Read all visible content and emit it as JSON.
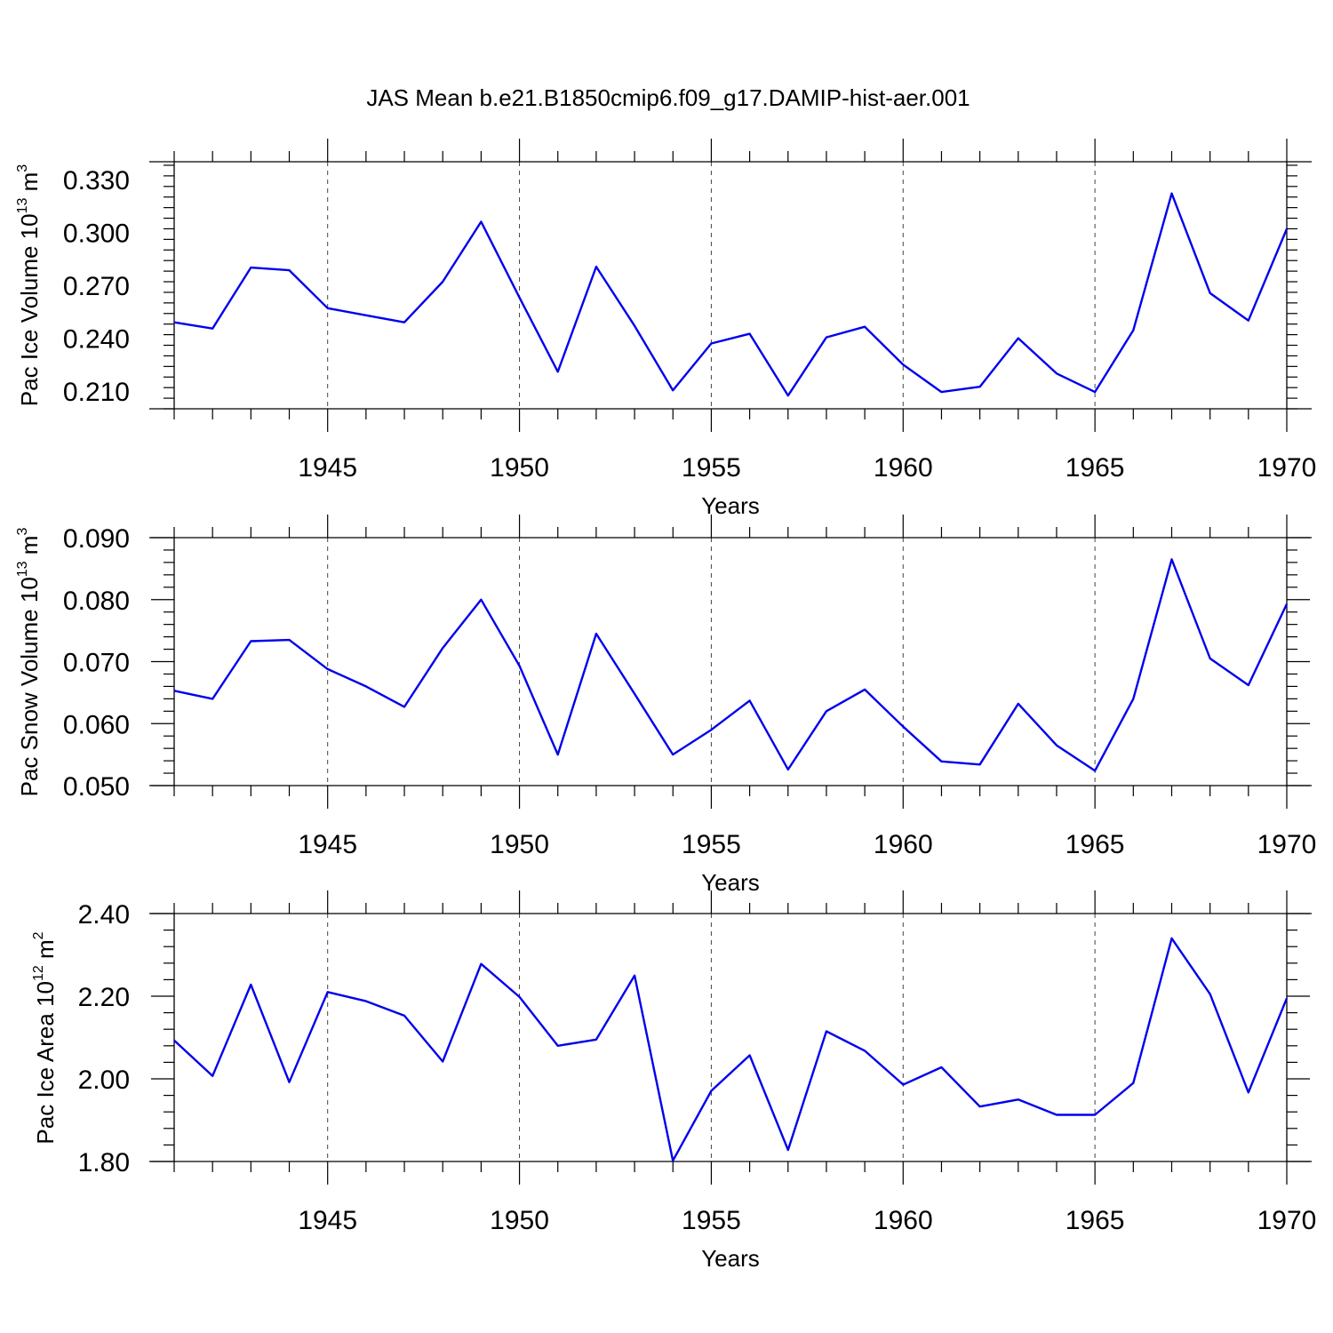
{
  "figure": {
    "title": "JAS Mean b.e21.B1850cmip6.f09_g17.DAMIP-hist-aer.001"
  },
  "colors": {
    "line": "#0000ee",
    "axis": "#000000",
    "grid": "#444444"
  },
  "chart_data": [
    {
      "type": "line",
      "ylabel": "Pac Ice Volume 10",
      "ylabel_sup": "13",
      "ylabel_unit": " m",
      "ylabel_unit_sup": "3",
      "xlabel": "Years",
      "xlim": [
        1941,
        1970
      ],
      "ylim": [
        0.2,
        0.34
      ],
      "yticks": [
        0.21,
        0.24,
        0.27,
        0.3,
        0.33
      ],
      "ytick_labels": [
        "0.210",
        "0.240",
        "0.270",
        "0.300",
        "0.330"
      ],
      "xticks": [
        1945,
        1950,
        1955,
        1960,
        1965,
        1970
      ],
      "xtick_labels": [
        "1945",
        "1950",
        "1955",
        "1960",
        "1965",
        "1970"
      ],
      "grid_x": [
        1945,
        1950,
        1955,
        1960,
        1965
      ],
      "series": [
        {
          "x": [
            1941,
            1942,
            1943,
            1944,
            1945,
            1946,
            1947,
            1948,
            1949,
            1950,
            1951,
            1952,
            1953,
            1954,
            1955,
            1956,
            1957,
            1958,
            1959,
            1960,
            1961,
            1962,
            1963,
            1964,
            1965,
            1966,
            1967,
            1968,
            1969,
            1970
          ],
          "values": [
            0.249,
            0.2455,
            0.28,
            0.2785,
            0.257,
            0.253,
            0.249,
            0.272,
            0.306,
            0.263,
            0.221,
            0.2805,
            0.247,
            0.2105,
            0.237,
            0.2425,
            0.2075,
            0.2405,
            0.2465,
            0.225,
            0.2095,
            0.2125,
            0.24,
            0.22,
            0.2095,
            0.2445,
            0.322,
            0.2655,
            0.25,
            0.302
          ]
        }
      ]
    },
    {
      "type": "line",
      "ylabel": "Pac Snow Volume 10",
      "ylabel_sup": "13",
      "ylabel_unit": " m",
      "ylabel_unit_sup": "3",
      "xlabel": "Years",
      "xlim": [
        1941,
        1970
      ],
      "ylim": [
        0.05,
        0.09
      ],
      "yticks": [
        0.05,
        0.06,
        0.07,
        0.08,
        0.09
      ],
      "ytick_labels": [
        "0.050",
        "0.060",
        "0.070",
        "0.080",
        "0.090"
      ],
      "xticks": [
        1945,
        1950,
        1955,
        1960,
        1965,
        1970
      ],
      "xtick_labels": [
        "1945",
        "1950",
        "1955",
        "1960",
        "1965",
        "1970"
      ],
      "grid_x": [
        1945,
        1950,
        1955,
        1960,
        1965
      ],
      "series": [
        {
          "x": [
            1941,
            1942,
            1943,
            1944,
            1945,
            1946,
            1947,
            1948,
            1949,
            1950,
            1951,
            1952,
            1953,
            1954,
            1955,
            1956,
            1957,
            1958,
            1959,
            1960,
            1961,
            1962,
            1963,
            1964,
            1965,
            1966,
            1967,
            1968,
            1969,
            1970
          ],
          "values": [
            0.0653,
            0.064,
            0.0733,
            0.0735,
            0.0688,
            0.066,
            0.0627,
            0.0722,
            0.08,
            0.0693,
            0.055,
            0.0745,
            0.0648,
            0.055,
            0.059,
            0.0637,
            0.0526,
            0.062,
            0.0655,
            0.0595,
            0.0539,
            0.0534,
            0.0632,
            0.0565,
            0.0524,
            0.064,
            0.0865,
            0.0705,
            0.0662,
            0.0793
          ]
        }
      ]
    },
    {
      "type": "line",
      "ylabel": "Pac Ice Area 10",
      "ylabel_sup": "12",
      "ylabel_unit": " m",
      "ylabel_unit_sup": "2",
      "xlabel": "Years",
      "xlim": [
        1941,
        1970
      ],
      "ylim": [
        1.8,
        2.4
      ],
      "yticks": [
        1.8,
        2.0,
        2.2,
        2.4
      ],
      "ytick_labels": [
        "1.80",
        "2.00",
        "2.20",
        "2.40"
      ],
      "xticks": [
        1945,
        1950,
        1955,
        1960,
        1965,
        1970
      ],
      "xtick_labels": [
        "1945",
        "1950",
        "1955",
        "1960",
        "1965",
        "1970"
      ],
      "grid_x": [
        1945,
        1950,
        1955,
        1960,
        1965
      ],
      "series": [
        {
          "x": [
            1941,
            1942,
            1943,
            1944,
            1945,
            1946,
            1947,
            1948,
            1949,
            1950,
            1951,
            1952,
            1953,
            1954,
            1955,
            1956,
            1957,
            1958,
            1959,
            1960,
            1961,
            1962,
            1963,
            1964,
            1965,
            1966,
            1967,
            1968,
            1969,
            1970
          ],
          "values": [
            2.093,
            2.007,
            2.228,
            1.992,
            2.21,
            2.188,
            2.153,
            2.042,
            2.278,
            2.198,
            2.08,
            2.095,
            2.25,
            1.802,
            1.971,
            2.057,
            1.828,
            2.115,
            2.068,
            1.986,
            2.028,
            1.933,
            1.95,
            1.913,
            1.913,
            1.99,
            2.34,
            2.205,
            1.967,
            2.195
          ]
        }
      ]
    }
  ]
}
